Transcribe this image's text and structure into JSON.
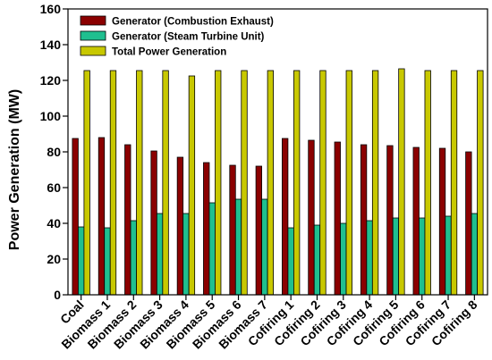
{
  "chart_data": {
    "type": "bar",
    "title": "",
    "xlabel": "",
    "ylabel": "Power Generation (MW)",
    "ylim": [
      0,
      160
    ],
    "yticks": [
      0,
      20,
      40,
      60,
      80,
      100,
      120,
      140,
      160
    ],
    "grid": false,
    "legend_position": "top-left",
    "categories": [
      "Coal",
      "Biomass 1",
      "Biomass 2",
      "Biomass 3",
      "Biomass 4",
      "Biomass 5",
      "Biomass 6",
      "Biomass 7",
      "Cofiring 1",
      "Cofiring 2",
      "Cofiring 3",
      "Cofiring 4",
      "Cofiring 5",
      "Cofiring 6",
      "Cofiring 7",
      "Cofiring 8"
    ],
    "series": [
      {
        "name": "Generator (Combustion Exhaust)",
        "color": "#8b0000",
        "values": [
          87.5,
          88,
          84,
          80.5,
          77,
          74,
          72.5,
          72,
          87.5,
          86.5,
          85.5,
          84,
          83.5,
          82.5,
          82,
          80
        ]
      },
      {
        "name": "Generator (Steam Turbine Unit)",
        "color": "#1fbf8f",
        "values": [
          38,
          37.5,
          41.5,
          45.5,
          45.5,
          51.5,
          53.5,
          53.5,
          37.5,
          39,
          40,
          41.5,
          43,
          43,
          44,
          45.5
        ]
      },
      {
        "name": "Total Power Generation",
        "color": "#c8c800",
        "values": [
          125.5,
          125.5,
          125.5,
          125.5,
          122.5,
          125.5,
          125.5,
          125.5,
          125.5,
          125.5,
          125.5,
          125.5,
          126.5,
          125.5,
          125.5,
          125.5
        ]
      }
    ]
  }
}
